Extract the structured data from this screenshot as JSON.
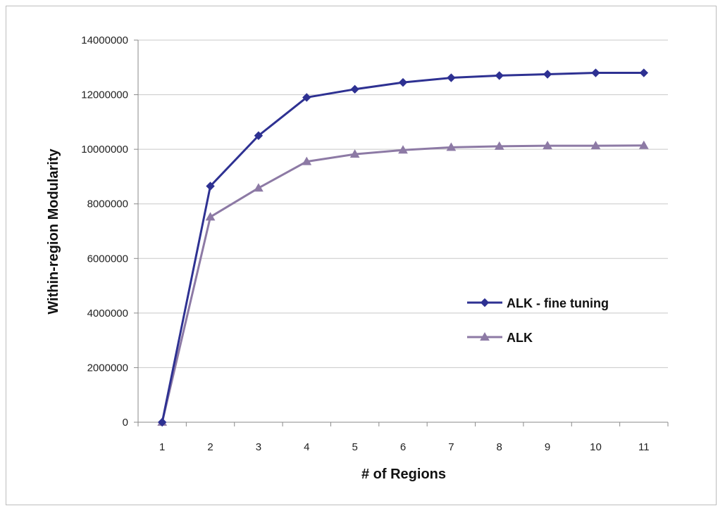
{
  "chart_data": {
    "type": "line",
    "title": "",
    "xlabel": "# of Regions",
    "ylabel": "Within-region Modularity",
    "categories": [
      "1",
      "2",
      "3",
      "4",
      "5",
      "6",
      "7",
      "8",
      "9",
      "10",
      "11"
    ],
    "ylim": [
      0,
      14000000
    ],
    "yticks": [
      "0",
      "2000000",
      "4000000",
      "6000000",
      "8000000",
      "10000000",
      "12000000",
      "14000000"
    ],
    "grid": true,
    "legend_position": "right",
    "series": [
      {
        "name": "ALK - fine tuning",
        "color": "#2e3192",
        "marker": "diamond",
        "values": [
          0,
          8650000,
          10500000,
          11900000,
          12200000,
          12450000,
          12620000,
          12700000,
          12750000,
          12800000,
          12800000
        ]
      },
      {
        "name": "ALK",
        "color": "#8d7aa5",
        "marker": "triangle",
        "values": [
          0,
          7520000,
          8580000,
          9550000,
          9820000,
          9970000,
          10070000,
          10110000,
          10130000,
          10130000,
          10140000
        ]
      }
    ]
  }
}
